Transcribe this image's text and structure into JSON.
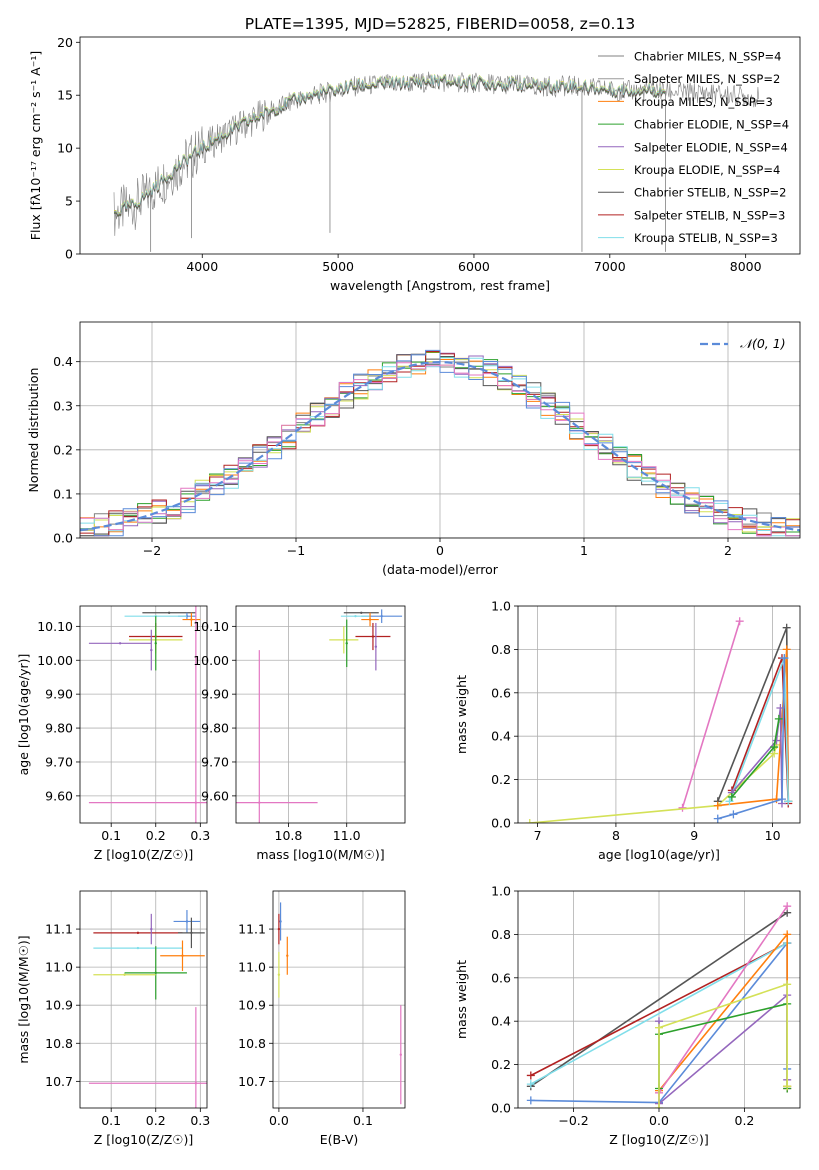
{
  "figure_title": "PLATE=1395, MJD=52825, FIBERID=0058, z=0.13",
  "colors": {
    "chab_miles": "#808080",
    "salp_miles": "#9a9a9a",
    "krou_miles": "#ff7f0e",
    "chab_elod": "#2ca02c",
    "salp_elod": "#9467bd",
    "krou_elod": "#d4e157",
    "chab_stel": "#555555",
    "salp_stel": "#b22222",
    "krou_stel": "#80deea",
    "blue": "#5b8bd9",
    "pink": "#e377c2",
    "olive": "#9acd32",
    "grid": "#b0b0b0"
  },
  "chart_data": [
    {
      "id": "spectrum",
      "type": "line",
      "title": "PLATE=1395, MJD=52825, FIBERID=0058, z=0.13",
      "xlabel": "wavelength [Angstrom, rest frame]",
      "ylabel": "Flux [fλ10⁻¹⁷ erg cm⁻² s⁻¹ A⁻¹]",
      "xlim": [
        3100,
        8400
      ],
      "ylim": [
        0,
        20.5
      ],
      "xticks": [
        4000,
        5000,
        6000,
        7000,
        8000
      ],
      "yticks": [
        0,
        5,
        10,
        15,
        20
      ],
      "grid": false,
      "legend_position": "top-right",
      "spectrum_x": [
        3350,
        3500,
        3650,
        3800,
        3950,
        4100,
        4300,
        4500,
        4700,
        4900,
        5100,
        5300,
        5500,
        5700,
        5900,
        6100,
        6300,
        6500,
        6700,
        6900,
        7100,
        7300,
        7500,
        7700,
        7900,
        8100
      ],
      "spectrum_y": [
        3.8,
        4.6,
        6.2,
        8.0,
        9.5,
        10.8,
        12.2,
        13.5,
        14.6,
        15.2,
        15.8,
        16.0,
        16.1,
        16.3,
        16.2,
        16.1,
        16.0,
        15.8,
        15.9,
        15.6,
        15.4,
        15.5,
        15.3,
        15.2,
        15.0,
        14.8
      ],
      "models_end_x": 7410,
      "series": [
        {
          "name": "Chabrier MILES, N_SSP=4",
          "color_key": "chab_miles"
        },
        {
          "name": "Salpeter MILES, N_SSP=2",
          "color_key": "salp_miles"
        },
        {
          "name": "Kroupa MILES, N_SSP=3",
          "color_key": "krou_miles"
        },
        {
          "name": "Chabrier ELODIE, N_SSP=4",
          "color_key": "chab_elod"
        },
        {
          "name": "Salpeter ELODIE, N_SSP=4",
          "color_key": "salp_elod"
        },
        {
          "name": "Kroupa ELODIE, N_SSP=4",
          "color_key": "krou_elod"
        },
        {
          "name": "Chabrier STELIB, N_SSP=2",
          "color_key": "chab_stel"
        },
        {
          "name": "Salpeter STELIB, N_SSP=3",
          "color_key": "salp_stel"
        },
        {
          "name": "Kroupa STELIB, N_SSP=3",
          "color_key": "krou_stel"
        }
      ]
    },
    {
      "id": "residuals",
      "type": "line",
      "xlabel": "(data-model)/error",
      "ylabel": "Normed distribution",
      "xlim": [
        -2.5,
        2.5
      ],
      "ylim": [
        0,
        0.49
      ],
      "xticks": [
        -2,
        -1,
        0,
        1,
        2
      ],
      "yticks": [
        0.0,
        0.1,
        0.2,
        0.3,
        0.4
      ],
      "grid": true,
      "legend_position": "top-right",
      "legend_label": "𝒩(0, 1)",
      "bin_width": 0.1
    },
    {
      "id": "z_age",
      "type": "scatter",
      "xlabel": "Z [log10(Z/Z☉)]",
      "ylabel": "age  [log10(age/yr)]",
      "xlim": [
        0.03,
        0.315
      ],
      "ylim": [
        9.52,
        10.16
      ],
      "xticks": [
        0.1,
        0.2,
        0.3
      ],
      "yticks": [
        9.6,
        9.7,
        9.8,
        9.9,
        10.0,
        10.1
      ],
      "grid": true,
      "points": [
        {
          "x": 0.23,
          "y": 10.14,
          "xerr": 0.06,
          "yerr": 0.0,
          "color_key": "chab_stel"
        },
        {
          "x": 0.27,
          "y": 10.13,
          "xerr": 0.02,
          "yerr": 0.01,
          "color_key": "blue"
        },
        {
          "x": 0.2,
          "y": 10.13,
          "xerr": 0.07,
          "yerr": 0.0,
          "color_key": "krou_stel"
        },
        {
          "x": 0.28,
          "y": 10.12,
          "xerr": 0.02,
          "yerr": 0.02,
          "color_key": "krou_miles"
        },
        {
          "x": 0.2,
          "y": 10.07,
          "xerr": 0.06,
          "yerr": 0.04,
          "color_key": "salp_stel"
        },
        {
          "x": 0.2,
          "y": 10.06,
          "xerr": 0.06,
          "yerr": 0.04,
          "color_key": "krou_elod"
        },
        {
          "x": 0.12,
          "y": 10.05,
          "xerr": 0.07,
          "yerr": 0.0,
          "color_key": "salp_elod"
        },
        {
          "x": 0.2,
          "y": 10.05,
          "xerr": 0.0,
          "yerr": 0.08,
          "color_key": "chab_elod"
        },
        {
          "x": 0.19,
          "y": 10.03,
          "xerr": 0.0,
          "yerr": 0.06,
          "color_key": "salp_elod"
        },
        {
          "x": 0.29,
          "y": 9.58,
          "xerr": 0.24,
          "yerr": 0.6,
          "color_key": "pink"
        }
      ]
    },
    {
      "id": "mass_age",
      "type": "scatter",
      "xlabel": "mass [log10(M/M☉)]",
      "ylabel": "",
      "xlim": [
        10.62,
        11.2
      ],
      "ylim": [
        9.52,
        10.16
      ],
      "xticks": [
        10.8,
        11.0
      ],
      "yticks": [
        9.6,
        9.7,
        9.8,
        9.9,
        10.0,
        10.1
      ],
      "grid": true,
      "points": [
        {
          "x": 11.05,
          "y": 10.14,
          "xerr": 0.06,
          "yerr": 0.0,
          "color_key": "chab_stel"
        },
        {
          "x": 11.12,
          "y": 10.13,
          "xerr": 0.07,
          "yerr": 0.02,
          "color_key": "blue"
        },
        {
          "x": 11.03,
          "y": 10.13,
          "xerr": 0.05,
          "yerr": 0.0,
          "color_key": "krou_stel"
        },
        {
          "x": 11.08,
          "y": 10.12,
          "xerr": 0.03,
          "yerr": 0.02,
          "color_key": "krou_miles"
        },
        {
          "x": 11.09,
          "y": 10.07,
          "xerr": 0.06,
          "yerr": 0.04,
          "color_key": "salp_stel"
        },
        {
          "x": 10.99,
          "y": 10.06,
          "xerr": 0.05,
          "yerr": 0.04,
          "color_key": "krou_elod"
        },
        {
          "x": 11.0,
          "y": 10.05,
          "xerr": 0.0,
          "yerr": 0.07,
          "color_key": "chab_elod"
        },
        {
          "x": 11.1,
          "y": 10.04,
          "xerr": 0.0,
          "yerr": 0.07,
          "color_key": "salp_elod"
        },
        {
          "x": 10.7,
          "y": 9.58,
          "xerr": 0.2,
          "yerr": 0.45,
          "color_key": "pink"
        }
      ]
    },
    {
      "id": "age_weight",
      "type": "line",
      "xlabel": "age  [log10(age/yr)]",
      "ylabel": "mass weight",
      "xlim": [
        6.75,
        10.35
      ],
      "ylim": [
        0,
        1.0
      ],
      "xticks": [
        7,
        8,
        9,
        10
      ],
      "yticks": [
        0.0,
        0.2,
        0.4,
        0.6,
        0.8,
        1.0
      ],
      "grid": true,
      "series": [
        {
          "color_key": "pink",
          "x": [
            8.85,
            9.58
          ],
          "y": [
            0.07,
            0.93
          ]
        },
        {
          "color_key": "krou_elod",
          "x": [
            6.9,
            9.3,
            10.02,
            10.05
          ],
          "y": [
            0.0,
            0.08,
            0.32,
            0.36
          ]
        },
        {
          "color_key": "chab_stel",
          "x": [
            9.3,
            10.18,
            10.2
          ],
          "y": [
            0.1,
            0.9,
            0.1
          ]
        },
        {
          "color_key": "krou_miles",
          "x": [
            9.3,
            10.05,
            10.18,
            10.2
          ],
          "y": [
            0.08,
            0.11,
            0.8,
            0.1
          ]
        },
        {
          "color_key": "salp_stel",
          "x": [
            9.48,
            10.12,
            10.2
          ],
          "y": [
            0.15,
            0.76,
            0.09
          ]
        },
        {
          "color_key": "krou_stel",
          "x": [
            9.45,
            10.15,
            10.2
          ],
          "y": [
            0.1,
            0.76,
            0.1
          ]
        },
        {
          "color_key": "salp_elod",
          "x": [
            9.48,
            10.05,
            10.1,
            10.12
          ],
          "y": [
            0.14,
            0.38,
            0.53,
            0.09
          ]
        },
        {
          "color_key": "chab_elod",
          "x": [
            9.48,
            10.02,
            10.08
          ],
          "y": [
            0.12,
            0.35,
            0.48
          ]
        },
        {
          "color_key": "blue",
          "x": [
            9.3,
            9.5,
            10.12,
            10.15
          ],
          "y": [
            0.02,
            0.04,
            0.11,
            0.76
          ]
        }
      ]
    },
    {
      "id": "z_mass",
      "type": "scatter",
      "xlabel": "Z [log10(Z/Z☉)]",
      "ylabel": "mass [log10(M/M☉)]",
      "xlim": [
        0.03,
        0.315
      ],
      "ylim": [
        10.63,
        11.2
      ],
      "xticks": [
        0.1,
        0.2,
        0.3
      ],
      "yticks": [
        10.7,
        10.8,
        10.9,
        11.0,
        11.1
      ],
      "grid": true,
      "points": [
        {
          "x": 0.27,
          "y": 11.12,
          "xerr": 0.03,
          "yerr": 0.03,
          "color_key": "blue"
        },
        {
          "x": 0.16,
          "y": 11.09,
          "xerr": 0.1,
          "yerr": 0.0,
          "color_key": "salp_stel"
        },
        {
          "x": 0.28,
          "y": 11.09,
          "xerr": 0.03,
          "yerr": 0.04,
          "color_key": "chab_stel"
        },
        {
          "x": 0.19,
          "y": 11.1,
          "xerr": 0.0,
          "yerr": 0.04,
          "color_key": "salp_elod"
        },
        {
          "x": 0.16,
          "y": 11.05,
          "xerr": 0.1,
          "yerr": 0.0,
          "color_key": "krou_stel"
        },
        {
          "x": 0.26,
          "y": 11.03,
          "xerr": 0.05,
          "yerr": 0.04,
          "color_key": "krou_miles"
        },
        {
          "x": 0.2,
          "y": 10.985,
          "xerr": 0.07,
          "yerr": 0.07,
          "color_key": "chab_elod"
        },
        {
          "x": 0.13,
          "y": 10.98,
          "xerr": 0.07,
          "yerr": 0.0,
          "color_key": "krou_elod"
        },
        {
          "x": 0.29,
          "y": 10.695,
          "xerr": 0.24,
          "yerr": 0.2,
          "color_key": "pink"
        }
      ]
    },
    {
      "id": "ebv_mass",
      "type": "scatter",
      "xlabel": "E(B-V)",
      "ylabel": "",
      "xlim": [
        -0.007,
        0.15
      ],
      "ylim": [
        10.63,
        11.2
      ],
      "xticks": [
        0.0,
        0.1
      ],
      "yticks": [
        10.7,
        10.8,
        10.9,
        11.0,
        11.1
      ],
      "grid": true,
      "points": [
        {
          "x": 0.002,
          "y": 11.12,
          "xerr": 0.0,
          "yerr": 0.05,
          "color_key": "blue"
        },
        {
          "x": 0.0,
          "y": 11.1,
          "xerr": 0.0,
          "yerr": 0.04,
          "color_key": "salp_stel"
        },
        {
          "x": 0.01,
          "y": 11.03,
          "xerr": 0.0,
          "yerr": 0.05,
          "color_key": "krou_miles"
        },
        {
          "x": 0.0,
          "y": 10.98,
          "xerr": 0.0,
          "yerr": 0.06,
          "color_key": "krou_elod"
        },
        {
          "x": 0.145,
          "y": 10.77,
          "xerr": 0.0,
          "yerr": 0.13,
          "color_key": "pink"
        }
      ]
    },
    {
      "id": "z_weight",
      "type": "line",
      "xlabel": "Z [log10(Z/Z☉)]",
      "ylabel": "mass weight",
      "xlim": [
        -0.33,
        0.33
      ],
      "ylim": [
        0,
        1.0
      ],
      "xticks": [
        -0.2,
        0.0,
        0.2
      ],
      "yticks": [
        0.0,
        0.2,
        0.4,
        0.6,
        0.8,
        1.0
      ],
      "grid": true,
      "series": [
        {
          "color_key": "blue",
          "x": [
            -0.3,
            0.0,
            0.3,
            0.3
          ],
          "y": [
            0.035,
            0.025,
            0.76,
            0.18
          ]
        },
        {
          "color_key": "chab_stel",
          "x": [
            -0.3,
            0.3
          ],
          "y": [
            0.1,
            0.9
          ]
        },
        {
          "color_key": "salp_stel",
          "x": [
            -0.3,
            0.3,
            0.3
          ],
          "y": [
            0.15,
            0.76,
            0.09
          ]
        },
        {
          "color_key": "krou_stel",
          "x": [
            -0.3,
            0.3,
            0.3
          ],
          "y": [
            0.11,
            0.76,
            0.1
          ]
        },
        {
          "color_key": "krou_miles",
          "x": [
            0.0,
            0.3,
            0.3
          ],
          "y": [
            0.08,
            0.8,
            0.1
          ]
        },
        {
          "color_key": "pink",
          "x": [
            0.0,
            0.3
          ],
          "y": [
            0.07,
            0.93
          ]
        },
        {
          "color_key": "salp_elod",
          "x": [
            0.0,
            0.0,
            0.3,
            0.3
          ],
          "y": [
            0.4,
            0.02,
            0.52,
            0.13
          ]
        },
        {
          "color_key": "chab_elod",
          "x": [
            0.0,
            0.0,
            0.3,
            0.3
          ],
          "y": [
            0.09,
            0.34,
            0.48,
            0.09
          ]
        },
        {
          "color_key": "krou_elod",
          "x": [
            0.0,
            0.0,
            0.3,
            0.3
          ],
          "y": [
            0.0,
            0.37,
            0.57,
            0.1
          ]
        }
      ]
    }
  ]
}
